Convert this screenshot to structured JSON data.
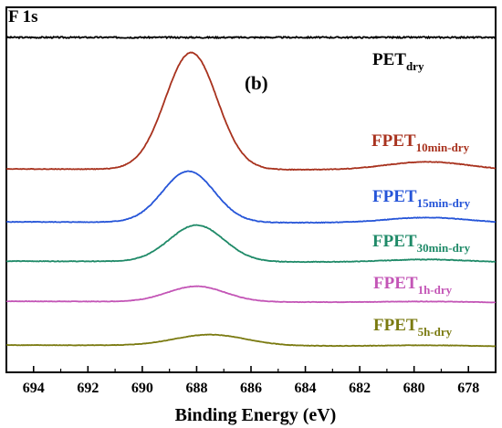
{
  "chart_data": {
    "type": "line",
    "panel_title": "F 1s",
    "panel_label": "(b)",
    "xlabel": "Binding Energy (eV)",
    "ylabel": "",
    "xlim": [
      695,
      677
    ],
    "x_reversed": true,
    "xticks": [
      694,
      692,
      690,
      688,
      686,
      684,
      682,
      680,
      678
    ],
    "yticks_shown": false,
    "grid": false,
    "legend": "inline labels at right of each trace",
    "y_units": "offset intensity (a.u.), stacked",
    "series": [
      {
        "name": "PET",
        "subscript": "dry",
        "color": "#000000",
        "baseline": 0,
        "peak_height": 0,
        "peak_center": 688,
        "peak_width": 1.2,
        "hump_height": 0,
        "hump_center": 679.5,
        "hump_width": 1.5,
        "noise": 1.0
      },
      {
        "name": "FPET",
        "subscript": "10min-dry",
        "color": "#a8321e",
        "baseline": 0,
        "peak_height": 128,
        "peak_center": 688.2,
        "peak_width": 0.95,
        "hump_height": 9,
        "hump_center": 679.5,
        "hump_width": 1.5,
        "noise": 0.4
      },
      {
        "name": "FPET",
        "subscript": "15min-dry",
        "color": "#2655d8",
        "baseline": 0,
        "peak_height": 56,
        "peak_center": 688.3,
        "peak_width": 0.95,
        "hump_height": 6,
        "hump_center": 679.5,
        "hump_width": 1.5,
        "noise": 0.4
      },
      {
        "name": "FPET",
        "subscript": "30min-dry",
        "color": "#1f8a68",
        "baseline": 0,
        "peak_height": 40,
        "peak_center": 688.0,
        "peak_width": 1.0,
        "hump_height": 3,
        "hump_center": 679.5,
        "hump_width": 1.5,
        "noise": 0.4
      },
      {
        "name": "FPET",
        "subscript": "1h-dry",
        "color": "#c355b6",
        "baseline": 0,
        "peak_height": 17,
        "peak_center": 688.0,
        "peak_width": 1.05,
        "hump_height": 1,
        "hump_center": 679.5,
        "hump_width": 1.5,
        "noise": 0.3
      },
      {
        "name": "FPET",
        "subscript": "5h-dry",
        "color": "#7a7a10",
        "baseline": 0,
        "peak_height": 12,
        "peak_center": 687.5,
        "peak_width": 1.3,
        "hump_height": 1,
        "hump_center": 679.5,
        "hump_width": 1.5,
        "noise": 0.3
      }
    ]
  }
}
